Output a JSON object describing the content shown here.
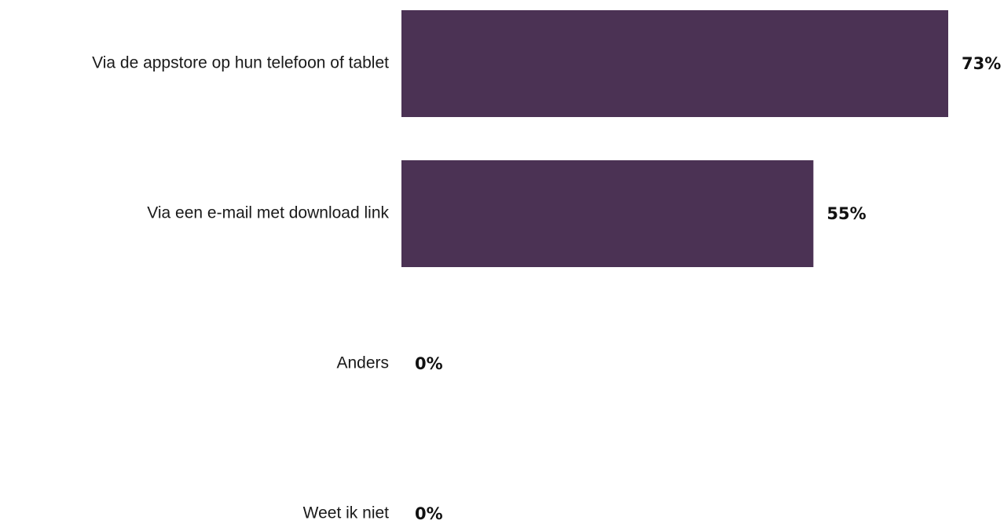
{
  "chart_data": {
    "type": "bar",
    "orientation": "horizontal",
    "categories": [
      "Via de appstore op hun telefoon of tablet",
      "Via een e-mail met download link",
      "Anders",
      "Weet ik niet"
    ],
    "values": [
      73,
      55,
      0,
      0
    ],
    "value_labels": [
      "73%",
      "55%",
      "0%",
      "0%"
    ],
    "unit": "%",
    "bar_color": "#4b3254",
    "xlim": [
      0,
      73
    ],
    "grid": false,
    "legend": "none"
  }
}
